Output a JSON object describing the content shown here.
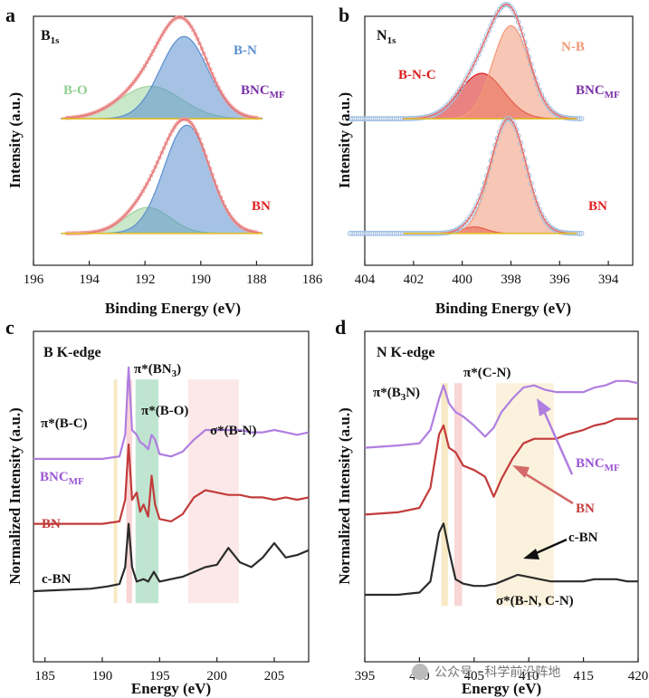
{
  "watermark": "公众号 · 科学前沿阵地",
  "colors": {
    "fit": "#e57373",
    "raw_dots": "#9fbfe0",
    "baseline": "#e1bd2b",
    "bo": "#9dd39d",
    "bn_b": "#5b8fce",
    "bnc_n": "#d91b1b",
    "nb": "#f29877",
    "purple": "#b07ee0",
    "red": "#c23b3b",
    "black": "#2b2b2b",
    "label_purple": "#7a2fa6",
    "label_red": "#e02020"
  },
  "chart_data": [
    {
      "panel": "a",
      "type": "line",
      "title": "B1s",
      "title_main": "B",
      "title_sub": "1s",
      "xlabel": "Binding Energy (eV)",
      "ylabel": "Intensity (a.u.)",
      "xlim": [
        196,
        186
      ],
      "x_ticks": [
        "196",
        "194",
        "192",
        "190",
        "188",
        "186"
      ],
      "x_tick_values": [
        196,
        194,
        192,
        190,
        188,
        186
      ],
      "series": [
        {
          "name": "BNC_MF",
          "label_main": "BNC",
          "label_sub": "MF",
          "offset": 0.56,
          "baseline_from": 195.0,
          "baseline_to": 187.8,
          "components": [
            {
              "name": "B-O",
              "center": 191.8,
              "width": 1.1,
              "height": 0.15
            },
            {
              "name": "B-N",
              "center": 190.6,
              "width": 0.85,
              "height": 0.38
            }
          ]
        },
        {
          "name": "BN",
          "label_main": "BN",
          "offset": 0.03,
          "baseline_from": 195.0,
          "baseline_to": 187.8,
          "components": [
            {
              "name": "B-O",
              "center": 191.9,
              "width": 0.8,
              "height": 0.12
            },
            {
              "name": "B-N",
              "center": 190.5,
              "width": 0.82,
              "height": 0.5
            }
          ]
        }
      ],
      "annotations": [
        "B-N",
        "B-O",
        "BNC",
        "MF",
        "BN"
      ]
    },
    {
      "panel": "b",
      "type": "line",
      "title": "N1s",
      "title_main": "N",
      "title_sub": "1s",
      "xlabel": "Binding Energy (eV)",
      "ylabel": "Intensity (a.u.)",
      "xlim": [
        404,
        393
      ],
      "x_ticks": [
        "404",
        "402",
        "400",
        "398",
        "396",
        "394"
      ],
      "x_tick_values": [
        404,
        402,
        400,
        398,
        396,
        394
      ],
      "series": [
        {
          "name": "BNC_MF",
          "label_main": "BNC",
          "label_sub": "MF",
          "offset": 0.56,
          "baseline_from": 402.4,
          "baseline_to": 395.3,
          "components": [
            {
              "name": "B-N-C",
              "center": 399.2,
              "width": 0.9,
              "height": 0.21
            },
            {
              "name": "N-B",
              "center": 398.0,
              "width": 0.75,
              "height": 0.43
            }
          ]
        },
        {
          "name": "BN",
          "label_main": "BN",
          "offset": 0.03,
          "baseline_from": 402.4,
          "baseline_to": 395.3,
          "components": [
            {
              "name": "B-N-C",
              "center": 399.5,
              "width": 0.5,
              "height": 0.03
            },
            {
              "name": "N-B",
              "center": 398.1,
              "width": 0.72,
              "height": 0.53
            }
          ]
        }
      ],
      "annotations": [
        "N-B",
        "B-N-C",
        "BNC",
        "MF",
        "BN"
      ]
    },
    {
      "panel": "c",
      "type": "line",
      "title": "B K-edge",
      "xlabel": "Energy (eV)",
      "ylabel": "Normalized Intensity (a.u.)",
      "xlim": [
        184,
        208
      ],
      "x_ticks": [
        "185",
        "190",
        "195",
        "200",
        "205"
      ],
      "x_tick_values": [
        185,
        190,
        195,
        200,
        205
      ],
      "series": [
        {
          "name": "BNC_MF",
          "label_main": "BNC",
          "label_sub": "MF",
          "offset": 0.55,
          "x": [
            184,
            190,
            191.5,
            192,
            192.3,
            192.6,
            193,
            193.3,
            193.6,
            194,
            194.3,
            194.6,
            195,
            196,
            197,
            198,
            199,
            200,
            201,
            202,
            203,
            204,
            205,
            206,
            207,
            208
          ],
          "y": [
            0,
            0,
            0.01,
            0.1,
            0.38,
            0.12,
            0.1,
            0.07,
            0.06,
            0.04,
            0.1,
            0.08,
            0.02,
            0.01,
            0.03,
            0.08,
            0.12,
            0.12,
            0.12,
            0.12,
            0.11,
            0.11,
            0.12,
            0.11,
            0.1,
            0.11
          ]
        },
        {
          "name": "BN",
          "label_main": "BN",
          "offset": 0.28,
          "x": [
            184,
            190,
            191.5,
            192,
            192.3,
            192.6,
            193,
            193.3,
            193.6,
            194,
            194.3,
            194.6,
            195,
            196,
            197,
            198,
            199,
            200,
            201,
            202,
            203,
            204,
            205,
            206,
            207,
            208
          ],
          "y": [
            0,
            0,
            0.01,
            0.1,
            0.33,
            0.1,
            0.13,
            0.05,
            0.08,
            0.03,
            0.2,
            0.08,
            0.02,
            0.01,
            0.04,
            0.11,
            0.14,
            0.13,
            0.12,
            0.12,
            0.11,
            0.11,
            0.1,
            0.11,
            0.1,
            0.11
          ]
        },
        {
          "name": "c-BN",
          "label_main": "c-BN",
          "offset": 0.0,
          "x": [
            184,
            189,
            190.5,
            191.5,
            192,
            192.3,
            192.6,
            193,
            193.6,
            194,
            194.5,
            195,
            196,
            197,
            198,
            199,
            200,
            201,
            202,
            203,
            204,
            205,
            206,
            207,
            208
          ],
          "y": [
            0,
            0.01,
            0.02,
            0.03,
            0.1,
            0.28,
            0.1,
            0.04,
            0.05,
            0.04,
            0.08,
            0.04,
            0.05,
            0.06,
            0.08,
            0.1,
            0.11,
            0.18,
            0.12,
            0.1,
            0.14,
            0.2,
            0.14,
            0.15,
            0.17
          ]
        }
      ],
      "bands": [
        {
          "from": 191.0,
          "to": 191.3,
          "color": "#f3e2b0"
        },
        {
          "from": 192.1,
          "to": 192.6,
          "color": "#f7c7c7"
        },
        {
          "from": 192.9,
          "to": 194.9,
          "color": "#a9dcc0"
        },
        {
          "from": 197.5,
          "to": 201.9,
          "color": "#fbe0e0"
        }
      ],
      "annotations": [
        "π*(B-C)",
        "π*(BN3)",
        "π*(B-O)",
        "σ*(B-N)",
        "BNC",
        "MF",
        "BN",
        "c-BN"
      ]
    },
    {
      "panel": "d",
      "type": "line",
      "title": "N K-edge",
      "xlabel": "Energy (eV)",
      "ylabel": "Normalized Intensity (a.u.)",
      "xlim": [
        395,
        420
      ],
      "x_ticks": [
        "395",
        "400",
        "405",
        "410",
        "415",
        "420"
      ],
      "x_tick_values": [
        395,
        400,
        405,
        410,
        415,
        420
      ],
      "series": [
        {
          "name": "BNC_MF",
          "label_main": "BNC",
          "label_sub": "MF",
          "offset": 0.66,
          "x": [
            395,
            398,
            400,
            401,
            401.8,
            402.2,
            402.7,
            403.3,
            404,
            405,
            406,
            406.8,
            407.5,
            408.5,
            409.5,
            410.5,
            411.5,
            412.5,
            413.5,
            415,
            416,
            417,
            418,
            419,
            420
          ],
          "y": [
            0,
            0.01,
            0.02,
            0.08,
            0.22,
            0.28,
            0.2,
            0.16,
            0.14,
            0.1,
            0.05,
            0.09,
            0.16,
            0.22,
            0.27,
            0.28,
            0.26,
            0.25,
            0.25,
            0.25,
            0.27,
            0.28,
            0.3,
            0.3,
            0.29
          ]
        },
        {
          "name": "BN",
          "label_main": "BN",
          "offset": 0.36,
          "x": [
            395,
            398,
            400,
            401,
            401.8,
            402.2,
            402.7,
            403.3,
            404,
            405,
            406,
            406.8,
            407.5,
            408.5,
            409.5,
            410.5,
            411.5,
            412.5,
            413.5,
            415,
            416,
            417,
            418,
            419,
            420
          ],
          "y": [
            0,
            0.01,
            0.03,
            0.12,
            0.36,
            0.4,
            0.3,
            0.28,
            0.22,
            0.2,
            0.17,
            0.08,
            0.16,
            0.25,
            0.32,
            0.34,
            0.34,
            0.34,
            0.36,
            0.38,
            0.4,
            0.41,
            0.43,
            0.43,
            0.43
          ]
        },
        {
          "name": "c-BN",
          "label_main": "c-BN",
          "offset": 0.0,
          "x": [
            395,
            398,
            400,
            401,
            401.8,
            402.2,
            402.7,
            403.3,
            404,
            405,
            406,
            407,
            408,
            409,
            410,
            411,
            412,
            413,
            414,
            415,
            416,
            417,
            418,
            419,
            420
          ],
          "y": [
            0,
            0.0,
            0.01,
            0.06,
            0.28,
            0.32,
            0.2,
            0.07,
            0.05,
            0.04,
            0.04,
            0.05,
            0.07,
            0.09,
            0.08,
            0.07,
            0.06,
            0.06,
            0.06,
            0.06,
            0.07,
            0.07,
            0.07,
            0.06,
            0.06
          ]
        }
      ],
      "bands": [
        {
          "from": 402.0,
          "to": 402.6,
          "color": "#f3e2b0"
        },
        {
          "from": 403.2,
          "to": 403.9,
          "color": "#f7c7c7"
        },
        {
          "from": 407.0,
          "to": 412.3,
          "color": "#faeed2"
        }
      ],
      "annotations": [
        "π*(B3N)",
        "π*(C-N)",
        "BNC",
        "MF",
        "BN",
        "c-BN",
        "σ*(B-N, C-N)"
      ]
    }
  ]
}
